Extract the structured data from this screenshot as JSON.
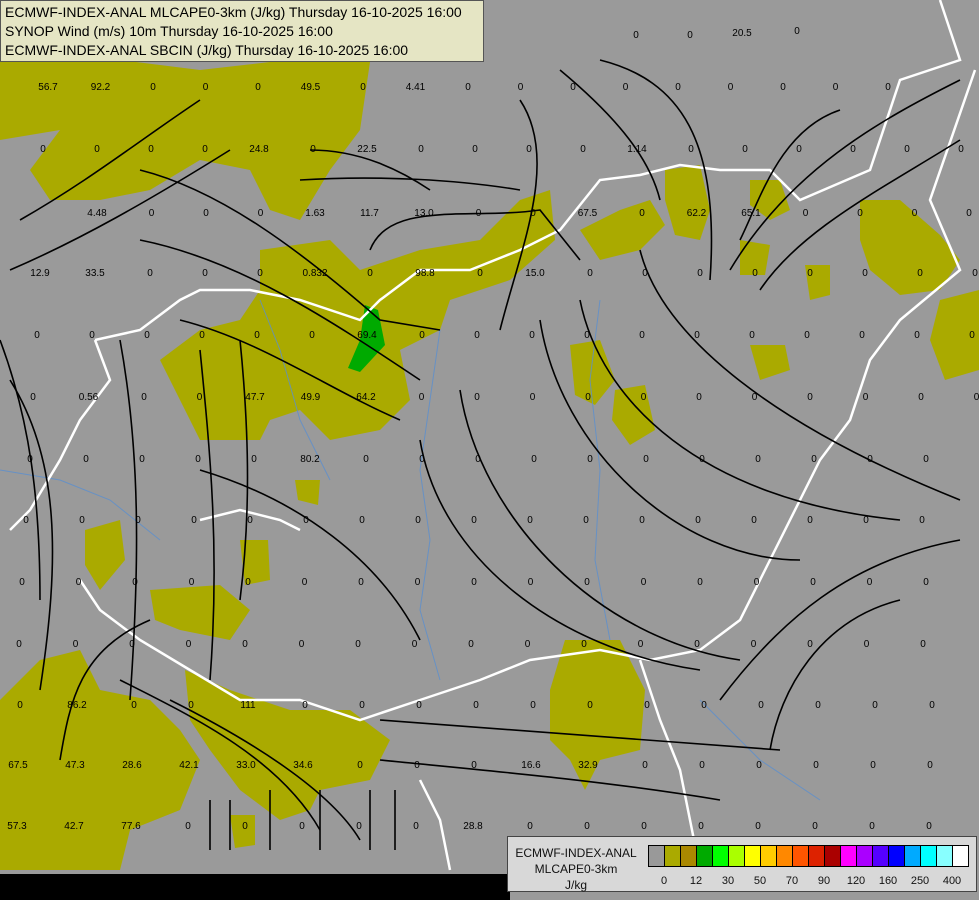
{
  "header": {
    "line1": "ECMWF-INDEX-ANAL MLCAPE0-3km (J/kg) Thursday 16-10-2025 16:00",
    "line2": "SYNOP Wind (m/s) 10m Thursday 16-10-2025 16:00",
    "line3": "ECMWF-INDEX-ANAL SBCIN (J/kg) Thursday 16-10-2025 16:00"
  },
  "legend": {
    "title1": "ECMWF-INDEX-ANAL",
    "title2": "MLCAPE0-3km",
    "unit": "J/kg",
    "colors": [
      "#999999",
      "#aaaa00",
      "#aa8800",
      "#00aa00",
      "#00ff00",
      "#aaff00",
      "#ffff00",
      "#ffcc00",
      "#ff8800",
      "#ff5500",
      "#dd2200",
      "#aa0000",
      "#ff00ff",
      "#aa00ff",
      "#5500ff",
      "#0000ff",
      "#00aaff",
      "#00ffff",
      "#88ffff",
      "#ffffff"
    ],
    "ticks": [
      "0",
      "12",
      "30",
      "50",
      "70",
      "90",
      "120",
      "160",
      "250",
      "400"
    ]
  },
  "map": {
    "background_color": "#9a9a9a",
    "cape_fill_color": "#aaaa00",
    "high_cape_color": "#00aa00",
    "border_color": "#ffffff",
    "river_color": "#5a8fd0",
    "streamline_color": "#000000",
    "values": [
      "56.7",
      "92.2",
      "0",
      "0",
      "0",
      "49.5",
      "0",
      "4.41",
      "0",
      "0",
      "0",
      "0",
      "0",
      "0",
      "0",
      "0",
      "0",
      "0",
      "0",
      "0",
      "0",
      "24.8",
      "0",
      "22.5",
      "0",
      "0",
      "0",
      "0",
      "1.14",
      "0",
      "0",
      "0",
      "0",
      "0",
      "0",
      "4.48",
      "0",
      "0",
      "0",
      "1.63",
      "11.7",
      "13.0",
      "0",
      "0",
      "67.5",
      "0",
      "62.2",
      "65.1",
      "0",
      "0",
      "0",
      "0",
      "12.9",
      "33.5",
      "0",
      "0",
      "0",
      "0.832",
      "0",
      "98.8",
      "0",
      "15.0",
      "0",
      "0",
      "0",
      "0",
      "0",
      "0",
      "0",
      "0",
      "0",
      "0",
      "0",
      "0",
      "0",
      "0",
      "69.4",
      "0",
      "0",
      "0",
      "0",
      "0",
      "0",
      "0",
      "0",
      "0",
      "0",
      "0",
      "0",
      "0.56",
      "0",
      "0",
      "47.7",
      "49.9",
      "64.2",
      "0",
      "0",
      "0",
      "0",
      "0",
      "0",
      "0",
      "0",
      "0",
      "0",
      "0",
      "0",
      "0",
      "0",
      "0",
      "0",
      "80.2",
      "0",
      "0",
      "0",
      "0",
      "0",
      "0",
      "0",
      "0",
      "0",
      "0",
      "0",
      "0",
      "0",
      "0",
      "0",
      "0",
      "0",
      "0",
      "0",
      "0",
      "0",
      "0",
      "0",
      "0",
      "0",
      "0",
      "0",
      "0",
      "0",
      "0",
      "0",
      "0",
      "0",
      "0",
      "0",
      "0",
      "0",
      "0",
      "0",
      "0",
      "0",
      "0",
      "0",
      "0",
      "0",
      "0",
      "0",
      "0",
      "0",
      "0",
      "0",
      "0",
      "0",
      "0",
      "0",
      "0",
      "0",
      "0",
      "0",
      "0",
      "0",
      "0",
      "0",
      "86.2",
      "0",
      "0",
      "111",
      "0",
      "0",
      "0",
      "0",
      "0",
      "0",
      "0",
      "0",
      "0",
      "0",
      "0",
      "0",
      "67.5",
      "47.3",
      "28.6",
      "42.1",
      "33.0",
      "34.6",
      "0",
      "0",
      "0",
      "16.6",
      "32.9",
      "0",
      "0",
      "0",
      "0",
      "0",
      "0",
      "57.3",
      "42.7",
      "77.6",
      "0",
      "0",
      "0",
      "0",
      "0",
      "28.8",
      "0",
      "0",
      "0",
      "0",
      "0",
      "0",
      "0",
      "0",
      "20.5",
      "0",
      "0",
      "0"
    ]
  }
}
